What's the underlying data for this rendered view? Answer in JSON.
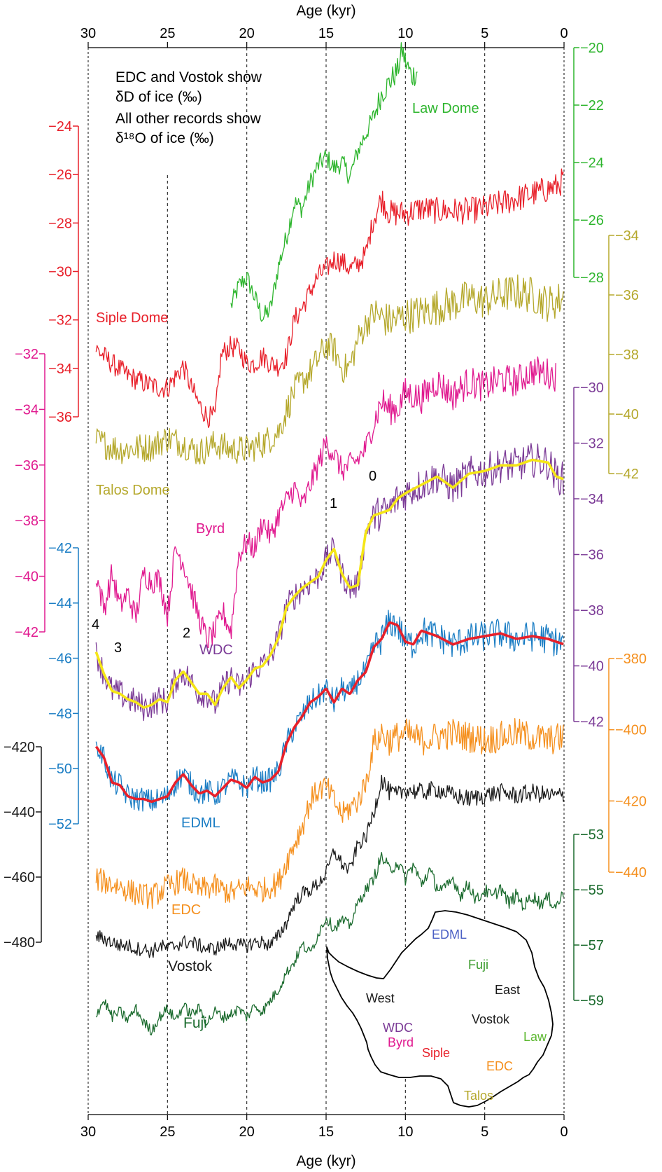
{
  "chart_data": {
    "type": "line",
    "xlabel": "Age (kyr)",
    "xlim": [
      30,
      0
    ],
    "x_ticks": [
      "30",
      "25",
      "20",
      "15",
      "10",
      "5",
      "0"
    ],
    "note_lines": [
      "EDC and Vostok show",
      "δD of ice (‰)",
      "All other records show",
      "δ¹⁸O of ice (‰)"
    ],
    "series": [
      {
        "key": "law",
        "name": "Law Dome",
        "color": "#2db52d",
        "axis": {
          "side": "right",
          "ticks": [
            "-20",
            "-22",
            "-24",
            "-26",
            "-28"
          ]
        },
        "x": [
          21.0,
          20.5,
          20.0,
          19.5,
          19.0,
          18.5,
          18.0,
          17.5,
          17.0,
          16.5,
          16.0,
          15.5,
          15.0,
          14.5,
          14.0,
          13.5,
          13.0,
          12.5,
          12.0,
          11.5,
          11.0,
          10.5,
          10.2,
          10.0,
          9.6,
          9.2
        ],
        "y": [
          -29.0,
          -28.3,
          -28.0,
          -28.7,
          -29.4,
          -29.1,
          -27.6,
          -26.6,
          -25.4,
          -25.6,
          -24.7,
          -24.1,
          -23.8,
          -24.2,
          -24.0,
          -24.5,
          -23.6,
          -23.0,
          -22.4,
          -21.6,
          -21.2,
          -20.8,
          -20.1,
          -20.5,
          -21.0,
          -20.8
        ],
        "noise": 0.35
      },
      {
        "key": "siple",
        "name": "Siple Dome",
        "color": "#e8202a",
        "axis": {
          "side": "left",
          "ticks": [
            "-24",
            "-26",
            "-28",
            "-30",
            "-32",
            "-34",
            "-36"
          ]
        },
        "x": [
          29.5,
          28.5,
          27.5,
          26.5,
          25.5,
          25.0,
          24.0,
          23.5,
          23.0,
          22.5,
          22.0,
          21.6,
          21.0,
          20.5,
          20.0,
          19.5,
          19.0,
          18.5,
          18.0,
          17.5,
          17.0,
          16.5,
          16.0,
          15.5,
          15.0,
          14.5,
          14.0,
          13.5,
          13.0,
          12.5,
          12.0,
          11.5,
          11.0,
          10.0,
          9.0,
          8.0,
          7.0,
          6.0,
          5.0,
          4.0,
          3.0,
          2.0,
          1.0,
          0.5,
          0.0
        ],
        "y": [
          -33.2,
          -33.8,
          -34.3,
          -34.6,
          -34.8,
          -34.8,
          -33.9,
          -34.8,
          -35.5,
          -36.0,
          -36.0,
          -33.4,
          -33.1,
          -33.2,
          -33.8,
          -33.8,
          -33.5,
          -33.8,
          -33.9,
          -33.5,
          -32.0,
          -31.5,
          -30.8,
          -30.2,
          -29.9,
          -29.5,
          -29.6,
          -29.9,
          -29.7,
          -29.3,
          -27.8,
          -27.0,
          -27.6,
          -27.6,
          -27.4,
          -27.5,
          -27.5,
          -27.5,
          -27.4,
          -27.2,
          -27.0,
          -26.8,
          -26.6,
          -26.5,
          -26.2
        ],
        "noise": 0.45
      },
      {
        "key": "talos",
        "name": "Talos Dome",
        "color": "#b5a82c",
        "axis": {
          "side": "right",
          "ticks": [
            "-34",
            "-36",
            "-38",
            "-40",
            "-42"
          ]
        },
        "x": [
          29.5,
          28.0,
          26.0,
          25.0,
          24.0,
          23.0,
          22.0,
          21.0,
          20.0,
          19.0,
          18.0,
          17.0,
          16.0,
          15.0,
          14.5,
          14.0,
          13.5,
          13.0,
          12.5,
          12.0,
          11.0,
          10.0,
          9.0,
          8.0,
          7.0,
          6.0,
          5.0,
          4.0,
          3.0,
          2.0,
          1.0,
          0.0
        ],
        "y": [
          -40.9,
          -41.2,
          -41.1,
          -40.8,
          -41.0,
          -41.3,
          -41.0,
          -41.2,
          -41.2,
          -41.0,
          -40.6,
          -39.2,
          -38.6,
          -37.7,
          -37.8,
          -38.5,
          -38.4,
          -37.5,
          -37.0,
          -36.6,
          -36.9,
          -36.7,
          -36.6,
          -36.4,
          -36.3,
          -36.1,
          -36.2,
          -36.0,
          -35.9,
          -36.0,
          -36.3,
          -36.1
        ],
        "noise": 0.5
      },
      {
        "key": "byrd",
        "name": "Byrd",
        "color": "#e0198f",
        "axis": {
          "side": "left",
          "ticks": [
            "-32",
            "-34",
            "-36",
            "-38",
            "-40",
            "-42"
          ]
        },
        "x": [
          29.5,
          29.0,
          28.5,
          28.0,
          27.5,
          27.0,
          26.5,
          26.0,
          25.5,
          25.0,
          24.5,
          24.0,
          23.5,
          23.0,
          22.5,
          22.0,
          21.5,
          21.0,
          20.5,
          20.0,
          19.5,
          19.0,
          18.5,
          18.0,
          17.5,
          17.0,
          16.5,
          16.0,
          15.5,
          15.0,
          14.5,
          14.0,
          13.5,
          13.0,
          12.5,
          12.0,
          11.5,
          11.0,
          10.5,
          10.0,
          9.0,
          8.0,
          7.0,
          6.0,
          5.0,
          4.0,
          3.0,
          2.0,
          1.0,
          0.5
        ],
        "y": [
          -39.9,
          -41.2,
          -39.9,
          -41.1,
          -40.6,
          -41.5,
          -39.9,
          -40.2,
          -40.1,
          -41.4,
          -39.0,
          -39.5,
          -40.5,
          -41.5,
          -42.3,
          -42.0,
          -41.3,
          -42.0,
          -39.2,
          -38.8,
          -39.0,
          -38.0,
          -38.6,
          -37.8,
          -37.3,
          -36.8,
          -37.5,
          -36.7,
          -36.0,
          -35.2,
          -35.6,
          -36.2,
          -36.0,
          -35.8,
          -35.4,
          -34.5,
          -33.7,
          -34.0,
          -34.0,
          -33.4,
          -33.6,
          -33.0,
          -33.5,
          -33.0,
          -33.2,
          -32.9,
          -33.0,
          -32.6,
          -32.7,
          -32.8
        ],
        "noise": 0.45
      },
      {
        "key": "wdc",
        "name": "WDC",
        "color": "#7b3a96",
        "axis": {
          "side": "right",
          "ticks": [
            "-30",
            "-32",
            "-34",
            "-36",
            "-38",
            "-40",
            "-42"
          ]
        },
        "x": [
          29.5,
          29.0,
          28.5,
          28.0,
          27.5,
          27.0,
          26.5,
          26.0,
          25.5,
          25.0,
          24.5,
          24.0,
          23.5,
          23.0,
          22.5,
          22.0,
          21.5,
          21.0,
          20.5,
          20.0,
          19.5,
          19.0,
          18.5,
          18.0,
          17.5,
          17.0,
          16.5,
          16.0,
          15.5,
          15.0,
          14.5,
          14.0,
          13.5,
          13.0,
          12.5,
          12.0,
          11.5,
          11.0,
          10.5,
          10.0,
          9.0,
          8.0,
          7.0,
          6.0,
          5.0,
          4.0,
          3.0,
          2.0,
          1.0,
          0.5,
          0.0
        ],
        "y": [
          -39.5,
          -40.3,
          -40.9,
          -41.0,
          -41.2,
          -41.3,
          -41.5,
          -41.4,
          -41.2,
          -41.3,
          -40.5,
          -40.2,
          -40.6,
          -41.0,
          -41.0,
          -41.4,
          -40.8,
          -40.4,
          -40.8,
          -40.5,
          -40.1,
          -40.0,
          -39.6,
          -39.0,
          -37.9,
          -37.5,
          -37.2,
          -37.0,
          -36.8,
          -36.2,
          -35.8,
          -36.7,
          -37.2,
          -37.1,
          -35.2,
          -34.6,
          -34.5,
          -34.4,
          -34.0,
          -33.8,
          -33.5,
          -33.2,
          -33.6,
          -33.1,
          -33.0,
          -32.8,
          -32.8,
          -32.6,
          -32.7,
          -33.2,
          -33.3
        ],
        "noise": 0.5,
        "mean_color": "#f5e616"
      },
      {
        "key": "edml",
        "name": "EDML",
        "color": "#1a7dc4",
        "axis": {
          "side": "left",
          "ticks": [
            "-42",
            "-44",
            "-46",
            "-48",
            "-50",
            "-52"
          ]
        },
        "x": [
          29.5,
          29.0,
          28.5,
          28.0,
          27.5,
          27.0,
          26.5,
          26.0,
          25.5,
          25.0,
          24.5,
          24.0,
          23.5,
          23.0,
          22.5,
          22.0,
          21.5,
          21.0,
          20.5,
          20.0,
          19.5,
          19.0,
          18.5,
          18.0,
          17.5,
          17.0,
          16.5,
          16.0,
          15.5,
          15.0,
          14.5,
          14.0,
          13.5,
          13.0,
          12.5,
          12.0,
          11.5,
          11.0,
          10.5,
          10.0,
          9.5,
          9.0,
          8.0,
          7.0,
          6.0,
          5.0,
          4.0,
          3.0,
          2.0,
          1.0,
          0.0
        ],
        "y": [
          -49.2,
          -49.6,
          -50.5,
          -50.6,
          -51.0,
          -51.1,
          -51.1,
          -51.2,
          -51.1,
          -51.0,
          -50.5,
          -50.2,
          -50.6,
          -50.9,
          -50.8,
          -51.0,
          -50.7,
          -50.4,
          -50.5,
          -50.7,
          -50.3,
          -50.5,
          -50.4,
          -50.1,
          -49.1,
          -48.5,
          -48.1,
          -47.6,
          -47.4,
          -47.1,
          -47.6,
          -47.1,
          -47.3,
          -46.8,
          -46.5,
          -45.6,
          -45.3,
          -44.7,
          -44.8,
          -45.4,
          -45.5,
          -45.0,
          -45.2,
          -45.5,
          -45.3,
          -45.2,
          -45.1,
          -45.3,
          -45.2,
          -45.3,
          -45.5
        ],
        "noise": 0.45,
        "mean_color": "#e8202a"
      },
      {
        "key": "edc",
        "name": "EDC",
        "color": "#f5901e",
        "axis": {
          "side": "right",
          "ticks": [
            "-380",
            "-400",
            "-420",
            "-440"
          ]
        },
        "x": [
          29.5,
          28.0,
          27.0,
          26.0,
          25.0,
          24.0,
          23.0,
          22.0,
          21.0,
          20.0,
          19.0,
          18.0,
          17.5,
          17.0,
          16.5,
          16.0,
          15.5,
          15.0,
          14.5,
          14.0,
          13.5,
          13.0,
          12.5,
          12.0,
          11.5,
          11.0,
          10.0,
          9.0,
          8.0,
          7.0,
          6.0,
          5.0,
          4.0,
          3.0,
          2.0,
          1.0,
          0.0
        ],
        "y": [
          -442,
          -444,
          -446,
          -447,
          -444,
          -442,
          -445,
          -444,
          -446,
          -444,
          -445,
          -443,
          -437,
          -432,
          -427,
          -420,
          -417,
          -416,
          -420,
          -424,
          -422,
          -420,
          -415,
          -404,
          -401,
          -403,
          -401,
          -403,
          -402,
          -401,
          -402,
          -403,
          -402,
          -401,
          -402,
          -403,
          -402
        ],
        "noise": 3.5
      },
      {
        "key": "vostok",
        "name": "Vostok",
        "color": "#1a1a1a",
        "axis": {
          "side": "left",
          "ticks": [
            "-420",
            "-440",
            "-460",
            "-480"
          ]
        },
        "x": [
          29.5,
          29.0,
          28.5,
          28.0,
          27.5,
          27.0,
          26.5,
          26.0,
          25.5,
          25.0,
          24.5,
          24.0,
          23.5,
          23.0,
          22.5,
          22.0,
          21.5,
          21.0,
          20.5,
          20.0,
          19.5,
          19.0,
          18.5,
          18.0,
          17.5,
          17.0,
          16.5,
          16.0,
          15.5,
          15.0,
          14.5,
          14.0,
          13.5,
          13.0,
          12.5,
          12.0,
          11.5,
          11.0,
          10.5,
          10.0,
          9.0,
          8.0,
          7.0,
          6.0,
          5.0,
          4.0,
          3.0,
          2.0,
          1.0,
          0.0
        ],
        "y": [
          -478,
          -479,
          -480,
          -481,
          -481,
          -482,
          -482,
          -483,
          -481,
          -482,
          -481,
          -480,
          -480,
          -481,
          -482,
          -482,
          -481,
          -480,
          -481,
          -481,
          -480,
          -480,
          -481,
          -478,
          -474,
          -468,
          -465,
          -464,
          -462,
          -459,
          -452,
          -456,
          -458,
          -450,
          -448,
          -440,
          -430,
          -434,
          -435,
          -433,
          -434,
          -433,
          -435,
          -436,
          -435,
          -434,
          -435,
          -434,
          -435,
          -435
        ],
        "noise": 2.2
      },
      {
        "key": "fuji",
        "name": "Fuji",
        "color": "#1b6b2e",
        "axis": {
          "side": "right",
          "ticks": [
            "-53",
            "-55",
            "-57",
            "-59"
          ]
        },
        "x": [
          29.5,
          29.0,
          28.5,
          28.0,
          27.5,
          27.0,
          26.5,
          26.0,
          25.5,
          25.0,
          24.5,
          24.0,
          23.5,
          23.0,
          22.5,
          22.0,
          21.5,
          21.0,
          20.5,
          20.0,
          19.5,
          19.0,
          18.5,
          18.0,
          17.5,
          17.0,
          16.5,
          16.0,
          15.5,
          15.0,
          14.5,
          14.0,
          13.5,
          13.0,
          12.5,
          12.0,
          11.5,
          11.0,
          10.5,
          10.0,
          9.5,
          9.0,
          8.5,
          8.0,
          7.5,
          7.0,
          6.5,
          6.0,
          5.5,
          5.0,
          4.5,
          4.0,
          3.5,
          3.0,
          2.5,
          2.0,
          1.5,
          1.0,
          0.5,
          0.0
        ],
        "y": [
          -59.5,
          -59.0,
          -59.6,
          -59.4,
          -59.7,
          -59.3,
          -59.8,
          -60.1,
          -59.6,
          -59.3,
          -59.7,
          -59.2,
          -59.5,
          -59.3,
          -59.8,
          -59.4,
          -59.6,
          -59.5,
          -59.3,
          -59.6,
          -59.2,
          -59.4,
          -59.0,
          -58.6,
          -58.0,
          -57.6,
          -57.0,
          -57.3,
          -56.6,
          -56.0,
          -56.4,
          -56.1,
          -56.3,
          -55.5,
          -55.0,
          -54.6,
          -53.8,
          -54.3,
          -54.0,
          -54.6,
          -54.1,
          -54.8,
          -54.3,
          -54.9,
          -55.0,
          -54.6,
          -55.2,
          -54.8,
          -55.4,
          -55.0,
          -55.3,
          -54.9,
          -55.5,
          -55.2,
          -55.6,
          -55.2,
          -55.5,
          -55.3,
          -55.6,
          -55.1
        ],
        "noise": 0.2
      }
    ],
    "series_labels": [
      "Law Dome",
      "Siple Dome",
      "Talos Dome",
      "Byrd",
      "WDC",
      "EDML",
      "EDC",
      "Vostok",
      "Fuji"
    ],
    "annotations": [
      "4",
      "3",
      "2",
      "1",
      "0"
    ],
    "map": {
      "labels": [
        {
          "text": "EDML",
          "color": "#4a5fc4"
        },
        {
          "text": "Fuji",
          "color": "#3a9b2c"
        },
        {
          "text": "East",
          "color": "#1a1a1a"
        },
        {
          "text": "West",
          "color": "#1a1a1a"
        },
        {
          "text": "Vostok",
          "color": "#1a1a1a"
        },
        {
          "text": "WDC",
          "color": "#7b3a96"
        },
        {
          "text": "Byrd",
          "color": "#e0198f"
        },
        {
          "text": "Siple",
          "color": "#e8202a"
        },
        {
          "text": "Law",
          "color": "#5cb830"
        },
        {
          "text": "EDC",
          "color": "#f5901e"
        },
        {
          "text": "Talos",
          "color": "#b5a82c"
        }
      ]
    }
  }
}
